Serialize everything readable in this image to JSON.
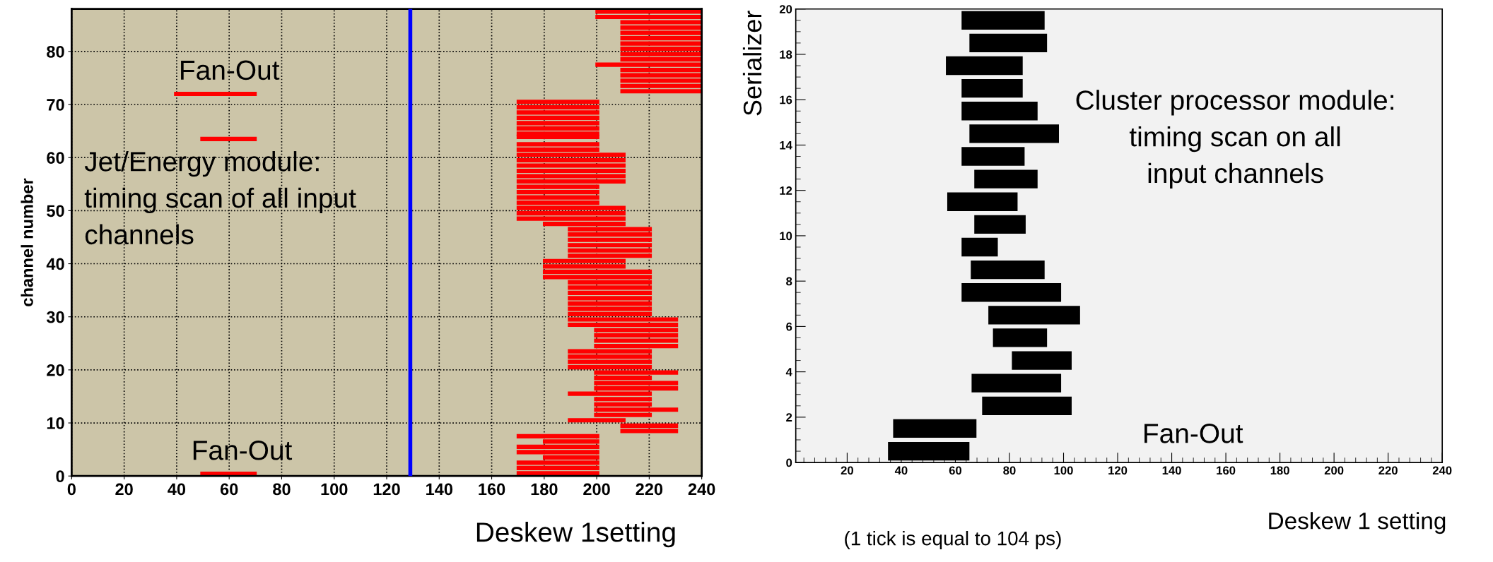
{
  "chart_data": [
    {
      "type": "bar",
      "orientation": "horizontal",
      "xlabel": "Deskew 1setting",
      "ylabel": "channel number",
      "xlim": [
        0,
        240
      ],
      "ylim": [
        0,
        88
      ],
      "xticks": [
        0,
        20,
        40,
        60,
        80,
        100,
        120,
        140,
        160,
        180,
        200,
        220,
        240
      ],
      "yticks": [
        0,
        10,
        20,
        30,
        40,
        50,
        60,
        70,
        80
      ],
      "grid": true,
      "ref_lines": [
        {
          "axis": "x",
          "value": 129,
          "color": "#0000ff"
        }
      ],
      "annotations": [
        "Fan-Out",
        "Fan-Out",
        "Jet/Energy module:\ntiming scan of all input\nchannels"
      ],
      "series": [
        {
          "color": "#ff0000",
          "x": [
            0.4,
            0.5,
            1.5,
            2.5,
            3.5,
            4.5,
            5.5,
            6.5,
            7.5,
            8.5,
            9.5,
            10.5,
            11.5,
            12.5,
            13.5,
            14.5,
            15.5,
            16.5,
            17.5,
            18.5,
            19.5,
            20.5,
            21.5,
            22.5,
            23.5,
            24.5,
            25.5,
            26.5,
            27.5,
            28.5,
            29.5,
            30.5,
            31.5,
            32.5,
            33.5,
            34.5,
            35.5,
            36.5,
            37.5,
            38.5,
            39.5,
            40.5,
            41.5,
            42.5,
            43.5,
            44.5,
            45.5,
            46.5,
            47.5,
            48.5,
            49.5,
            50.5,
            51.5,
            52.5,
            53.5,
            54.5,
            55.5,
            56.5,
            57.5,
            58.5,
            59.5,
            60.5,
            61.5,
            62.5,
            63.5,
            63.9,
            64.5,
            65.5,
            66.5,
            67.5,
            68.5,
            69.5,
            70.5,
            72,
            72.5,
            73.5,
            74.5,
            75.5,
            76.5,
            77.5,
            78.5,
            79.5,
            80.5,
            81.5,
            82.5,
            83.5,
            84.5,
            85.5,
            86.5,
            87.5
          ],
          "base": [
            49,
            169.5,
            169.5,
            169.5,
            179.5,
            169.5,
            169.5,
            179.5,
            169.5,
            209,
            209,
            189,
            199,
            199,
            199,
            199,
            189,
            199,
            199,
            199,
            199,
            189,
            189,
            189,
            189,
            199,
            199,
            199,
            199,
            189,
            189,
            189,
            189,
            189,
            189,
            189,
            189,
            189,
            179.5,
            179.5,
            179.5,
            179.5,
            189,
            189,
            189,
            189,
            189,
            189,
            179.5,
            169.5,
            169.5,
            169.5,
            169.5,
            169.5,
            169.5,
            169.5,
            169.5,
            169.5,
            169.5,
            169.5,
            169.5,
            169.5,
            169.5,
            169.5,
            49,
            169.5,
            169.5,
            169.5,
            169.5,
            169.5,
            169.5,
            169.5,
            169.5,
            39,
            209,
            209,
            209,
            209,
            209,
            199.5,
            209,
            209,
            209,
            209,
            209,
            209,
            209,
            209,
            199.5,
            199.5
          ],
          "values": [
            21.5,
            31.5,
            31.5,
            31.5,
            21.5,
            31.5,
            31.5,
            21.5,
            31.5,
            22,
            22,
            22,
            22,
            32,
            22,
            22,
            32,
            32,
            32,
            22,
            32,
            32,
            32,
            32,
            32,
            32,
            32,
            32,
            32,
            42,
            42,
            32,
            32,
            32,
            32,
            32,
            32,
            32,
            41.5,
            41.5,
            31.5,
            31.5,
            32,
            32,
            32,
            32,
            32,
            32,
            31.5,
            41.5,
            41.5,
            41.5,
            31.5,
            31.5,
            31.5,
            31.5,
            41.5,
            41.5,
            41.5,
            41.5,
            41.5,
            41.5,
            31.5,
            31.5,
            21.5,
            31.5,
            31.5,
            31.5,
            31.5,
            31.5,
            31.5,
            31.5,
            31.5,
            31.5,
            31,
            31,
            31,
            31,
            31,
            40.5,
            31,
            31,
            31,
            31,
            31,
            31,
            31,
            31,
            40.5,
            40.5
          ]
        }
      ]
    },
    {
      "type": "bar",
      "orientation": "horizontal",
      "xlabel": "Deskew 1 setting",
      "ylabel": "Serializer",
      "xlim": [
        1,
        240
      ],
      "ylim": [
        0,
        20
      ],
      "xticks": [
        20,
        40,
        60,
        80,
        100,
        120,
        140,
        160,
        180,
        200,
        220,
        240
      ],
      "yticks": [
        0,
        2,
        4,
        6,
        8,
        10,
        12,
        14,
        16,
        18,
        20
      ],
      "grid": false,
      "annotations": [
        "Cluster processor module:\ntiming scan on all\ninput channels",
        "Fan-Out",
        "(1 tick is equal to 104 ps)"
      ],
      "series": [
        {
          "color": "#000000",
          "x": [
            0.5,
            1.5,
            2.5,
            3.5,
            4.5,
            5.5,
            6.5,
            7.5,
            8.5,
            9.5,
            10.5,
            11.5,
            12.5,
            13.5,
            14.5,
            15.5,
            16.5,
            17.5,
            18.5,
            19.5
          ],
          "base": [
            35.1,
            37,
            69.9,
            66,
            80.9,
            73.9,
            72.2,
            62.3,
            65.7,
            62.3,
            67,
            57,
            67,
            62.3,
            65.2,
            62.3,
            62.3,
            56.5,
            65.2,
            62.3
          ],
          "values": [
            30.1,
            30.8,
            33.1,
            33.1,
            22.1,
            20,
            33.9,
            36.8,
            27.3,
            13.4,
            19,
            26,
            23.4,
            23.3,
            33.1,
            28.1,
            22.6,
            28.4,
            28.7,
            30.7
          ]
        }
      ]
    }
  ]
}
